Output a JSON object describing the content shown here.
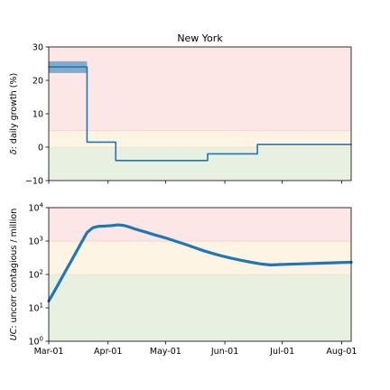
{
  "colors": {
    "line": "#1f77b4",
    "band": "#1f77b4",
    "zone_red": "#fde6e6",
    "zone_yellow": "#fdf4e4",
    "zone_green": "#e8f0e2",
    "zone_red_edge": "#f4b9b9",
    "zone_yellow_edge": "#f0d9a8"
  },
  "chart_data": [
    {
      "type": "line",
      "title": "New York",
      "xlabel": "",
      "ylabel": "δ: daily growth (%)",
      "ylabel_symbol": "δ",
      "ylabel_rest": ": daily growth (%)",
      "xlim": [
        "2020-03-01",
        "2020-08-06"
      ],
      "ylim": [
        -10,
        30
      ],
      "yticks": [
        -10,
        0,
        10,
        20,
        30
      ],
      "ytick_labels": [
        "−10",
        "0",
        "10",
        "20",
        "30"
      ],
      "xtick_dates": [
        "2020-03-01",
        "2020-04-01",
        "2020-05-01",
        "2020-06-01",
        "2020-07-01",
        "2020-08-01"
      ],
      "grid": false,
      "zones": [
        {
          "name": "red",
          "from": 5,
          "to": 30
        },
        {
          "name": "yellow",
          "from": 0,
          "to": 5
        },
        {
          "name": "green",
          "from": -10,
          "to": 0
        }
      ],
      "series": [
        {
          "x": [
            "2020-03-01",
            "2020-03-21",
            "2020-03-21",
            "2020-04-05",
            "2020-04-05",
            "2020-05-23",
            "2020-05-23",
            "2020-06-18",
            "2020-06-18",
            "2020-08-06"
          ],
          "y": [
            24,
            24,
            1.5,
            1.5,
            -4,
            -4,
            -2,
            -2,
            0.8,
            0.8
          ]
        }
      ],
      "band": {
        "x": [
          "2020-03-01",
          "2020-03-21"
        ],
        "low": 22.2,
        "high": 25.7
      }
    },
    {
      "type": "line",
      "title": "",
      "xlabel": "",
      "ylabel": "UC: uncorr contagious / million",
      "ylabel_symbol": "UC",
      "ylabel_rest": ": uncorr contagious / million",
      "xlim": [
        "2020-03-01",
        "2020-08-06"
      ],
      "ylim": [
        1,
        10000
      ],
      "yscale": "log",
      "yticks": [
        1,
        10,
        100,
        1000,
        10000
      ],
      "ytick_labels": [
        [
          "10",
          "0"
        ],
        [
          "10",
          "1"
        ],
        [
          "10",
          "2"
        ],
        [
          "10",
          "3"
        ],
        [
          "10",
          "4"
        ]
      ],
      "xtick_dates": [
        "2020-03-01",
        "2020-04-01",
        "2020-05-01",
        "2020-06-01",
        "2020-07-01",
        "2020-08-01"
      ],
      "xtick_labels": [
        "Mar-01",
        "Apr-01",
        "May-01",
        "Jun-01",
        "Jul-01",
        "Aug-01"
      ],
      "grid": false,
      "zones": [
        {
          "name": "red",
          "from": 1000,
          "to": 10000
        },
        {
          "name": "yellow",
          "from": 100,
          "to": 1000
        },
        {
          "name": "green",
          "from": 1,
          "to": 100
        }
      ],
      "series": [
        {
          "x": [
            "2020-03-01",
            "2020-03-05",
            "2020-03-09",
            "2020-03-13",
            "2020-03-17",
            "2020-03-21",
            "2020-03-24",
            "2020-03-27",
            "2020-03-31",
            "2020-04-03",
            "2020-04-06",
            "2020-04-09",
            "2020-04-12",
            "2020-04-15",
            "2020-04-20",
            "2020-04-25",
            "2020-05-01",
            "2020-05-06",
            "2020-05-11",
            "2020-05-16",
            "2020-05-21",
            "2020-05-26",
            "2020-05-31",
            "2020-06-05",
            "2020-06-10",
            "2020-06-15",
            "2020-06-20",
            "2020-06-25",
            "2020-06-30",
            "2020-07-10",
            "2020-07-20",
            "2020-07-31",
            "2020-08-06"
          ],
          "y": [
            16,
            40,
            105,
            270,
            700,
            1800,
            2500,
            2750,
            2820,
            2900,
            3050,
            2950,
            2650,
            2300,
            1900,
            1550,
            1240,
            1000,
            810,
            640,
            510,
            420,
            350,
            300,
            262,
            230,
            205,
            192,
            198,
            207,
            216,
            226,
            232
          ]
        }
      ]
    }
  ]
}
